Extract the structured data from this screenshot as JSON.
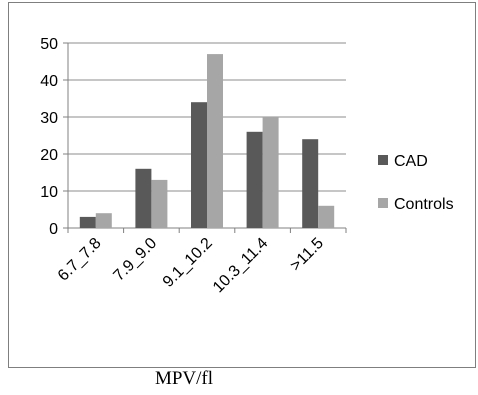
{
  "caption": "MPV/fl",
  "chart_data": {
    "type": "bar",
    "categories": [
      "6.7_7.8",
      "7.9_9.0",
      "9.1_10.2",
      "10.3_11.4",
      ">11.5"
    ],
    "series": [
      {
        "name": "CAD",
        "values": [
          3,
          16,
          34,
          26,
          24
        ],
        "color": "#595959"
      },
      {
        "name": "Controls",
        "values": [
          4,
          13,
          47,
          30,
          6
        ],
        "color": "#a6a6a6"
      }
    ],
    "ylim": [
      0,
      50
    ],
    "yticks": [
      0,
      10,
      20,
      30,
      40,
      50
    ],
    "grid": true,
    "legend": "right"
  }
}
